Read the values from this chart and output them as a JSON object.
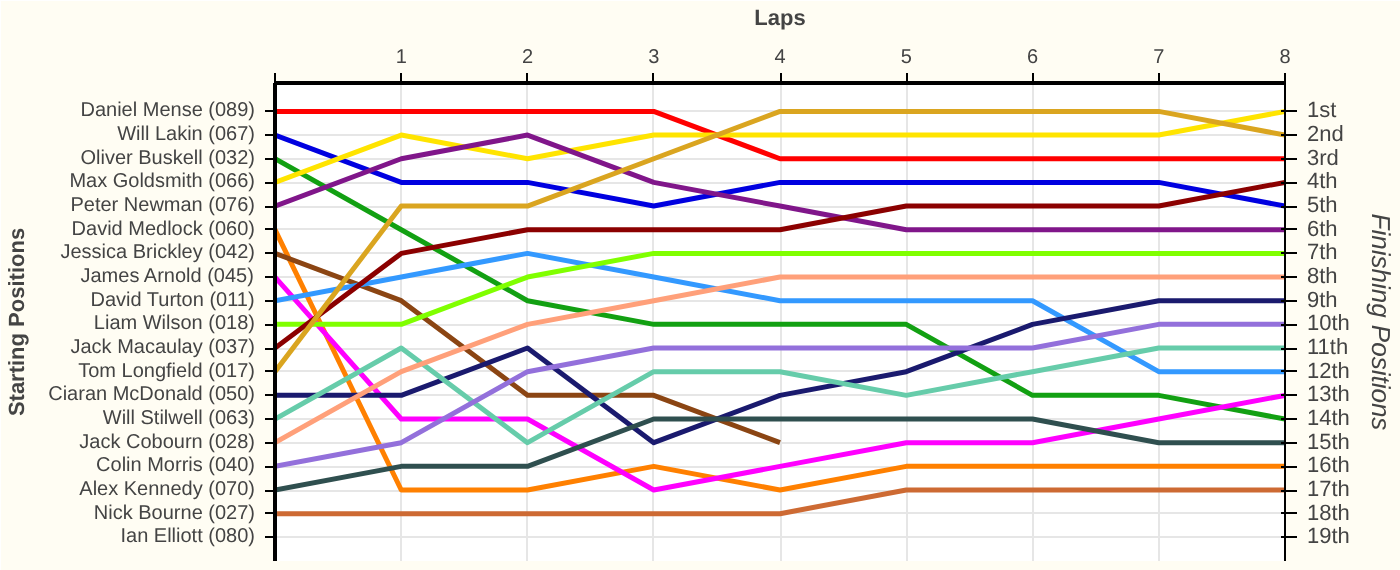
{
  "chart_data": {
    "type": "line",
    "xlabel": "Laps",
    "ylabel": "Finishing Positions",
    "x": [
      0,
      1,
      2,
      3,
      4,
      5,
      6,
      7,
      8
    ],
    "xlim": [
      0,
      8
    ],
    "xticks": [
      {
        "value": 0,
        "label": null
      },
      1,
      2,
      3,
      4,
      5,
      6,
      7,
      8
    ],
    "ylim": [
      20,
      -0.2
    ],
    "annotations": [
      "Starting Positions",
      "Ian Elliott (080)"
    ],
    "yticks": [
      {
        "value": 1,
        "label": "1st"
      },
      {
        "value": 2,
        "label": "2nd"
      },
      {
        "value": 3,
        "label": "3rd"
      },
      {
        "value": 4,
        "label": "4th"
      },
      {
        "value": 5,
        "label": "5th"
      },
      {
        "value": 6,
        "label": "6th"
      },
      {
        "value": 7,
        "label": "7th"
      },
      {
        "value": 8,
        "label": "8th"
      },
      {
        "value": 9,
        "label": "9th"
      },
      {
        "value": 10,
        "label": "10th"
      },
      {
        "value": 11,
        "label": "11th"
      },
      {
        "value": 12,
        "label": "12th"
      },
      {
        "value": 13,
        "label": "13th"
      },
      {
        "value": 14,
        "label": "14th"
      },
      {
        "value": 15,
        "label": "15th"
      },
      {
        "value": 16,
        "label": "16th"
      },
      {
        "value": 17,
        "label": "17th"
      },
      {
        "value": 18,
        "label": "18th"
      },
      {
        "value": 19,
        "label": "19th"
      }
    ],
    "grid": true,
    "marker": "none",
    "line_style": "solid",
    "series": [
      {
        "name": "Daniel Mense (089)",
        "color": "#ff0000",
        "values": [
          1,
          1,
          1,
          1,
          3,
          3,
          3,
          3,
          3
        ]
      },
      {
        "name": "Will Lakin (067)",
        "color": "#0000e0",
        "values": [
          2,
          4,
          4,
          5,
          4,
          4,
          4,
          4,
          5
        ]
      },
      {
        "name": "Oliver Buskell (032)",
        "color": "#12a012",
        "values": [
          3,
          6,
          9,
          10,
          10,
          10,
          13,
          13,
          14
        ]
      },
      {
        "name": "Max Goldsmith (066)",
        "color": "#ffe400",
        "values": [
          4,
          2,
          3,
          2,
          2,
          2,
          2,
          2,
          1
        ]
      },
      {
        "name": "Peter Newman (076)",
        "color": "#80168a",
        "values": [
          5,
          3,
          2,
          4,
          5,
          6,
          6,
          6,
          6
        ]
      },
      {
        "name": "David Medlock (060)",
        "color": "#ff8000",
        "values": [
          6,
          17,
          17,
          16,
          17,
          16,
          16,
          16,
          16
        ]
      },
      {
        "name": "Jessica Brickley (042)",
        "color": "#8b4513",
        "values": [
          7,
          9,
          13,
          13,
          15,
          null,
          null,
          null,
          null
        ]
      },
      {
        "name": "James Arnold (045)",
        "color": "#ff00ff",
        "values": [
          8,
          14,
          14,
          17,
          16,
          15,
          15,
          14,
          13
        ]
      },
      {
        "name": "David Turton (011)",
        "color": "#3399ff",
        "values": [
          9,
          8,
          7,
          8,
          9,
          9,
          9,
          12,
          12
        ]
      },
      {
        "name": "Liam Wilson (018)",
        "color": "#80ff00",
        "values": [
          10,
          10,
          8,
          7,
          7,
          7,
          7,
          7,
          7
        ]
      },
      {
        "name": "Jack Macaulay (037)",
        "color": "#8b0000",
        "values": [
          11,
          7,
          6,
          6,
          6,
          5,
          5,
          5,
          4
        ]
      },
      {
        "name": "Tom Longfield (017)",
        "color": "#daa520",
        "values": [
          12,
          5,
          5,
          3,
          1,
          1,
          1,
          1,
          2
        ]
      },
      {
        "name": "Ciaran McDonald (050)",
        "color": "#1a1a6e",
        "values": [
          13,
          13,
          11,
          15,
          13,
          12,
          10,
          9,
          9
        ]
      },
      {
        "name": "Will Stilwell (063)",
        "color": "#66ccaa",
        "values": [
          14,
          11,
          15,
          12,
          12,
          13,
          12,
          11,
          11
        ]
      },
      {
        "name": "Jack Cobourn (028)",
        "color": "#ffa07a",
        "values": [
          15,
          12,
          10,
          9,
          8,
          8,
          8,
          8,
          8
        ]
      },
      {
        "name": "Colin Morris (040)",
        "color": "#9370db",
        "values": [
          16,
          15,
          12,
          11,
          11,
          11,
          11,
          10,
          10
        ]
      },
      {
        "name": "Alex Kennedy (070)",
        "color": "#2f4f4f",
        "values": [
          17,
          16,
          16,
          14,
          14,
          14,
          14,
          15,
          15
        ]
      },
      {
        "name": "Nick Bourne (027)",
        "color": "#cd6a33",
        "values": [
          18,
          18,
          18,
          18,
          18,
          17,
          17,
          17,
          17
        ]
      }
    ]
  }
}
